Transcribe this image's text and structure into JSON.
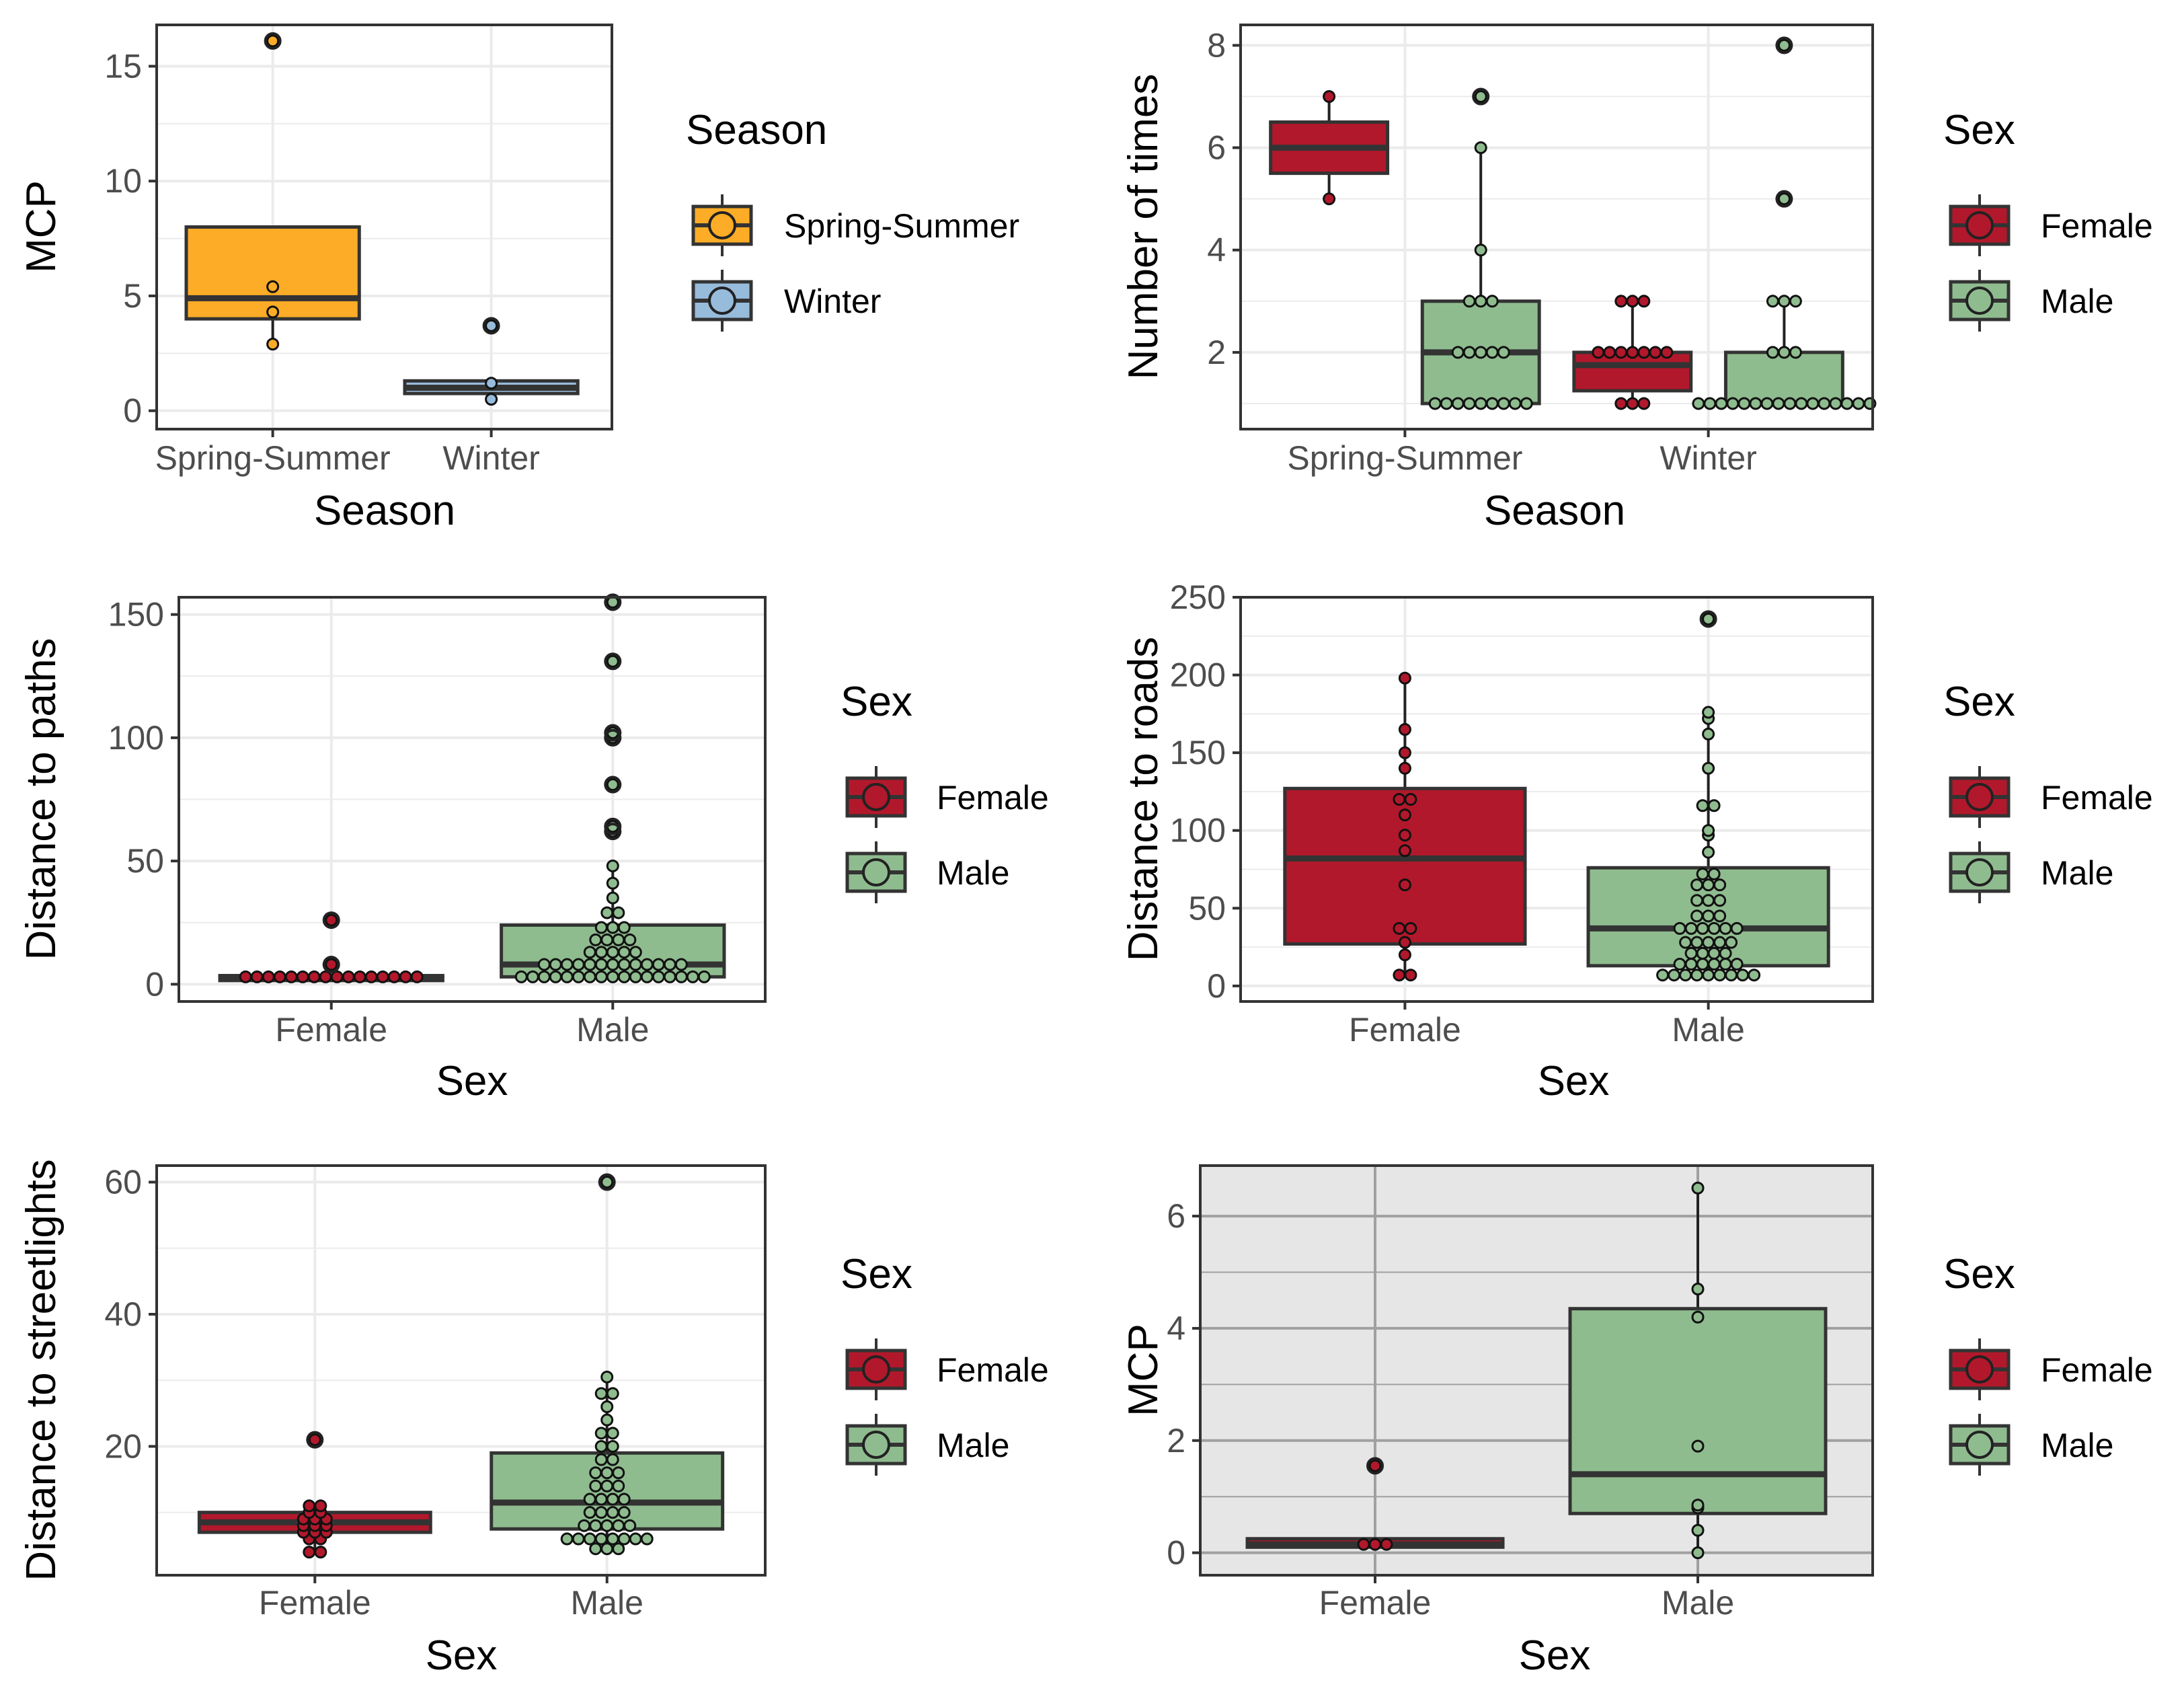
{
  "chart_data": [
    {
      "id": "p1",
      "type": "box",
      "xlabel": "Season",
      "ylabel": "MCP",
      "ylim": [
        -0.8,
        16.8
      ],
      "yticks": [
        0,
        5,
        10,
        15
      ],
      "tick_labels": [
        "0",
        "5",
        "10",
        "15"
      ],
      "minor_yticks": [
        2.5,
        7.5,
        12.5
      ],
      "panel_background": "#ffffff",
      "grid_color": "#ebebeb",
      "legend": {
        "title": "Season",
        "entries": [
          {
            "label": "Spring-Summer",
            "color": "#fcac26"
          },
          {
            "label": "Winter",
            "color": "#97bbdb"
          }
        ]
      },
      "categories": [
        {
          "label": "Spring-Summer",
          "color": "#fcac26",
          "box_width": 0.76,
          "q1": 4.0,
          "median": 4.9,
          "q3": 8.0,
          "lower": 2.9,
          "upper": 8.0,
          "outliers": [
            16.1
          ],
          "points": [
            2.9,
            4.3,
            5.4,
            16.1
          ]
        },
        {
          "label": "Winter",
          "color": "#97bbdb",
          "box_width": 0.76,
          "q1": 0.75,
          "median": 1.0,
          "q3": 1.3,
          "lower": 0.5,
          "upper": 1.3,
          "outliers": [
            3.7
          ],
          "points": [
            0.5,
            1.2,
            3.7
          ]
        }
      ]
    },
    {
      "id": "p2",
      "type": "box",
      "xlabel": "Season",
      "ylabel": "Number of times",
      "ylim": [
        0.5,
        8.4
      ],
      "yticks": [
        2,
        4,
        6,
        8
      ],
      "tick_labels": [
        "2",
        "4",
        "6",
        "8"
      ],
      "minor_yticks": [
        1,
        3,
        5,
        7
      ],
      "panel_background": "#ffffff",
      "grid_color": "#ebebeb",
      "legend": {
        "title": "Sex",
        "entries": [
          {
            "label": "Female",
            "color": "#b2182b"
          },
          {
            "label": "Male",
            "color": "#8fbc8f"
          }
        ]
      },
      "categories": [
        {
          "label": "Spring-Summer",
          "boxes": [
            {
              "group": "Female",
              "color": "#b2182b",
              "offset": -0.24,
              "box_width": 0.37,
              "q1": 5.5,
              "median": 6.0,
              "q3": 6.5,
              "lower": 5.0,
              "upper": 7.0,
              "outliers": [],
              "points": [
                5,
                7
              ]
            },
            {
              "group": "Male",
              "color": "#8fbc8f",
              "offset": 0.24,
              "box_width": 0.37,
              "q1": 1.0,
              "median": 2.0,
              "q3": 3.0,
              "lower": 1.0,
              "upper": 6.0,
              "outliers": [
                7
              ],
              "points": [
                1,
                1,
                1,
                1,
                1,
                1,
                1,
                1,
                1,
                2,
                2,
                2,
                2,
                2,
                3,
                3,
                3,
                4,
                6,
                7
              ]
            }
          ]
        },
        {
          "label": "Winter",
          "boxes": [
            {
              "group": "Female",
              "color": "#b2182b",
              "offset": -0.24,
              "box_width": 0.37,
              "q1": 1.25,
              "median": 1.75,
              "q3": 2.0,
              "lower": 1.0,
              "upper": 3.0,
              "outliers": [],
              "points": [
                1,
                1,
                1,
                2,
                2,
                2,
                2,
                2,
                2,
                2,
                3,
                3,
                3
              ]
            },
            {
              "group": "Male",
              "color": "#8fbc8f",
              "offset": 0.24,
              "box_width": 0.37,
              "q1": 1.0,
              "median": 1.0,
              "q3": 2.0,
              "lower": 1.0,
              "upper": 3.0,
              "outliers": [
                5,
                8
              ],
              "points": [
                1,
                1,
                1,
                1,
                1,
                1,
                1,
                1,
                1,
                1,
                1,
                1,
                1,
                1,
                1,
                1,
                2,
                2,
                2,
                3,
                3,
                3,
                5,
                8
              ]
            }
          ]
        }
      ]
    },
    {
      "id": "p3",
      "type": "box",
      "xlabel": "Sex",
      "ylabel": "Distance to paths",
      "ylim": [
        -7,
        157
      ],
      "yticks": [
        0,
        50,
        100,
        150
      ],
      "tick_labels": [
        "0",
        "50",
        "100",
        "150"
      ],
      "minor_yticks": [
        25,
        75,
        125
      ],
      "panel_background": "#ffffff",
      "grid_color": "#ebebeb",
      "legend": {
        "title": "Sex",
        "entries": [
          {
            "label": "Female",
            "color": "#b2182b"
          },
          {
            "label": "Male",
            "color": "#8fbc8f"
          }
        ]
      },
      "categories": [
        {
          "label": "Female",
          "color": "#b2182b",
          "box_width": 0.76,
          "q1": 1.5,
          "median": 2.5,
          "q3": 3.5,
          "lower": 1.5,
          "upper": 3.5,
          "outliers": [
            8,
            26
          ],
          "points": [
            3,
            3,
            3,
            3,
            3,
            3,
            3,
            3,
            3,
            3,
            3,
            3,
            3,
            3,
            3,
            3,
            8,
            26
          ]
        },
        {
          "label": "Male",
          "color": "#8fbc8f",
          "box_width": 0.76,
          "q1": 3.0,
          "median": 8.0,
          "q3": 24.0,
          "lower": 3.0,
          "upper": 48.0,
          "outliers": [
            62,
            64,
            81,
            100,
            102,
            131,
            155
          ],
          "points": [
            3,
            3,
            3,
            3,
            3,
            3,
            3,
            3,
            3,
            3,
            3,
            3,
            3,
            3,
            3,
            3,
            3,
            8,
            8,
            8,
            8,
            8,
            8,
            8,
            8,
            8,
            8,
            8,
            8,
            8,
            13,
            13,
            13,
            13,
            13,
            18,
            18,
            18,
            18,
            23,
            23,
            23,
            29,
            29,
            35,
            41,
            48,
            62,
            64,
            81,
            100,
            102,
            131,
            155
          ]
        }
      ]
    },
    {
      "id": "p4",
      "type": "box",
      "xlabel": "Sex",
      "ylabel": "Distance to roads",
      "ylim": [
        -10,
        250
      ],
      "yticks": [
        0,
        50,
        100,
        150,
        200,
        250
      ],
      "tick_labels": [
        "0",
        "50",
        "100",
        "150",
        "200",
        "250"
      ],
      "minor_yticks": [
        25,
        75,
        125,
        175,
        225
      ],
      "panel_background": "#ffffff",
      "grid_color": "#ebebeb",
      "legend": {
        "title": "Sex",
        "entries": [
          {
            "label": "Female",
            "color": "#b2182b"
          },
          {
            "label": "Male",
            "color": "#8fbc8f"
          }
        ]
      },
      "categories": [
        {
          "label": "Female",
          "color": "#b2182b",
          "box_width": 0.76,
          "q1": 27,
          "median": 82,
          "q3": 127,
          "lower": 7,
          "upper": 198,
          "outliers": [],
          "points": [
            7,
            7,
            20,
            28,
            37,
            37,
            65,
            87,
            97,
            110,
            120,
            120,
            140,
            150,
            165,
            198
          ]
        },
        {
          "label": "Male",
          "color": "#8fbc8f",
          "box_width": 0.76,
          "q1": 13,
          "median": 37,
          "q3": 76,
          "lower": 7,
          "upper": 176,
          "outliers": [
            236
          ],
          "points": [
            7,
            7,
            7,
            7,
            7,
            7,
            7,
            7,
            7,
            14,
            14,
            14,
            14,
            14,
            14,
            21,
            21,
            21,
            21,
            28,
            28,
            28,
            28,
            28,
            37,
            37,
            37,
            37,
            37,
            37,
            45,
            45,
            45,
            55,
            55,
            55,
            65,
            65,
            65,
            72,
            72,
            86,
            97,
            100,
            116,
            116,
            140,
            162,
            172,
            176,
            236
          ]
        }
      ]
    },
    {
      "id": "p5",
      "type": "box",
      "xlabel": "Sex",
      "ylabel": "Distance to streetlights",
      "ylim": [
        0.5,
        62.5
      ],
      "yticks": [
        20,
        40,
        60
      ],
      "tick_labels": [
        "20",
        "40",
        "60"
      ],
      "minor_yticks": [
        10,
        30,
        50
      ],
      "panel_background": "#ffffff",
      "grid_color": "#ebebeb",
      "legend": {
        "title": "Sex",
        "entries": [
          {
            "label": "Female",
            "color": "#b2182b"
          },
          {
            "label": "Male",
            "color": "#8fbc8f"
          }
        ]
      },
      "categories": [
        {
          "label": "Female",
          "color": "#b2182b",
          "box_width": 0.76,
          "q1": 7,
          "median": 8.5,
          "q3": 10,
          "lower": 4,
          "upper": 11,
          "outliers": [
            21
          ],
          "points": [
            4,
            4,
            6,
            6,
            7,
            7,
            7,
            8,
            8,
            8,
            9,
            9,
            9,
            10,
            10,
            11,
            11,
            21
          ]
        },
        {
          "label": "Male",
          "color": "#8fbc8f",
          "box_width": 0.76,
          "q1": 7.5,
          "median": 11.5,
          "q3": 19,
          "lower": 4.5,
          "upper": 30.5,
          "outliers": [
            60
          ],
          "points": [
            4.5,
            4.5,
            4.5,
            6,
            6,
            6,
            6,
            6,
            6,
            6,
            6,
            8,
            8,
            8,
            8,
            8,
            10,
            10,
            10,
            10,
            12,
            12,
            12,
            12,
            14,
            14,
            14,
            16,
            16,
            16,
            18,
            18,
            20,
            20,
            22,
            22,
            24,
            26,
            28,
            28,
            30.5,
            60
          ]
        }
      ]
    },
    {
      "id": "p6",
      "type": "box",
      "xlabel": "Sex",
      "ylabel": "MCP",
      "ylim": [
        -0.4,
        6.9
      ],
      "yticks": [
        0,
        2,
        4,
        6
      ],
      "tick_labels": [
        "0",
        "2",
        "4",
        "6"
      ],
      "minor_yticks": [
        1,
        3,
        5
      ],
      "panel_background": "#e6e6e6",
      "grid_color": "#a0a0a0",
      "legend": {
        "title": "Sex",
        "entries": [
          {
            "label": "Female",
            "color": "#b2182b"
          },
          {
            "label": "Male",
            "color": "#8fbc8f"
          }
        ]
      },
      "categories": [
        {
          "label": "Female",
          "color": "#b2182b",
          "box_width": 0.76,
          "q1": 0.1,
          "median": 0.15,
          "q3": 0.25,
          "lower": 0.1,
          "upper": 0.25,
          "outliers": [
            1.55
          ],
          "points": [
            0.15,
            0.15,
            0.15,
            1.55
          ]
        },
        {
          "label": "Male",
          "color": "#8fbc8f",
          "box_width": 0.76,
          "q1": 0.7,
          "median": 1.4,
          "q3": 4.35,
          "lower": 0.0,
          "upper": 6.5,
          "outliers": [],
          "points": [
            0.0,
            0.4,
            0.8,
            0.85,
            1.9,
            4.2,
            4.7,
            6.5
          ]
        }
      ]
    }
  ]
}
